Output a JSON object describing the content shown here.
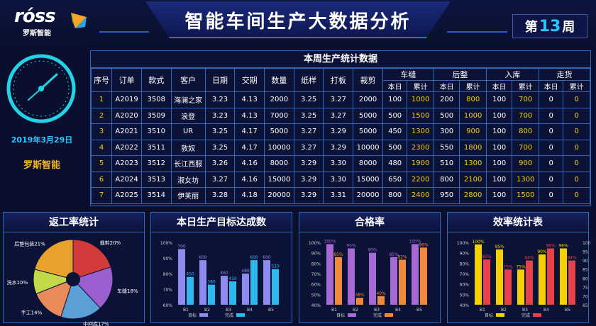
{
  "header": {
    "logo_text": "rόss",
    "logo_cn": "罗斯智能",
    "title": "智能车间生产大数据分析",
    "week_prefix": "第",
    "week_num": "13",
    "week_suffix": "周"
  },
  "left": {
    "date": "2019年3月29日",
    "company": "罗斯智能"
  },
  "table": {
    "title": "本周生产统计数据",
    "headers": [
      "序号",
      "订单",
      "款式",
      "客户",
      "日期",
      "交期",
      "数量",
      "纸样",
      "打板",
      "裁剪"
    ],
    "groups": [
      "车缝",
      "后整",
      "入库",
      "走货"
    ],
    "sub": [
      "本日",
      "累计"
    ],
    "rows": [
      [
        "1",
        "A2019",
        "3508",
        "海澜之家",
        "3.23",
        "4.13",
        "2000",
        "3.25",
        "3.27",
        "2000",
        "100",
        "1000",
        "200",
        "800",
        "100",
        "700",
        "0",
        "0"
      ],
      [
        "2",
        "A2020",
        "3509",
        "浪登",
        "3.23",
        "4.13",
        "7000",
        "3.25",
        "3.27",
        "5000",
        "500",
        "1500",
        "500",
        "1000",
        "100",
        "700",
        "0",
        "0"
      ],
      [
        "3",
        "A2021",
        "3510",
        "UR",
        "3.25",
        "4.17",
        "5000",
        "3.27",
        "3.29",
        "5000",
        "450",
        "1300",
        "300",
        "900",
        "100",
        "800",
        "0",
        "0"
      ],
      [
        "4",
        "A2022",
        "3511",
        "敦奴",
        "3.25",
        "4.17",
        "10000",
        "3.27",
        "3.29",
        "10000",
        "500",
        "2300",
        "550",
        "1800",
        "100",
        "700",
        "0",
        "0"
      ],
      [
        "5",
        "A2023",
        "3512",
        "长江西服",
        "3.26",
        "4.16",
        "8000",
        "3.29",
        "3.30",
        "8000",
        "480",
        "1900",
        "510",
        "1300",
        "100",
        "900",
        "0",
        "0"
      ],
      [
        "6",
        "A2024",
        "3513",
        "淑女坊",
        "3.27",
        "4.16",
        "15000",
        "3.29",
        "3.30",
        "15000",
        "650",
        "2200",
        "800",
        "2100",
        "100",
        "1300",
        "0",
        "0"
      ],
      [
        "7",
        "A2025",
        "3514",
        "伊芙丽",
        "3.28",
        "4.18",
        "20000",
        "3.29",
        "3.31",
        "20000",
        "800",
        "2400",
        "950",
        "2800",
        "100",
        "1500",
        "0",
        "0"
      ]
    ]
  },
  "panels": {
    "return_rate": {
      "title": "返工率统计",
      "slices": [
        {
          "label": "后整包装21%",
          "value": 21,
          "color": "#e8a12a"
        },
        {
          "label": "裁剪20%",
          "value": 20,
          "color": "#d33a3a"
        },
        {
          "label": "车缝18%",
          "value": 18,
          "color": "#9b5fd0"
        },
        {
          "label": "中间库17%",
          "value": 17,
          "color": "#5a9fd6"
        },
        {
          "label": "手工14%",
          "value": 14,
          "color": "#e88a5a"
        },
        {
          "label": "洗水10%",
          "value": 10,
          "color": "#c4d94a"
        }
      ]
    },
    "target": {
      "title": "本日生产目标达成数",
      "categories": [
        "B1",
        "B2",
        "B3",
        "B4",
        "B5"
      ],
      "target": [
        700,
        600,
        460,
        480,
        600
      ],
      "done": [
        450,
        380,
        410,
        600,
        520
      ],
      "yticks": [
        "100%",
        "90%",
        "80%",
        "70%",
        "60%"
      ],
      "legend": [
        "目标",
        "完成"
      ],
      "colors": [
        "#8c8cf0",
        "#2fb8f0"
      ]
    },
    "quality": {
      "title": "合格率",
      "categories": [
        "B1",
        "B2",
        "B3",
        "B4",
        "B5"
      ],
      "a": [
        100,
        95,
        90,
        85,
        100
      ],
      "b": [
        85,
        38,
        40,
        82,
        96
      ],
      "labels_a": [
        "100%",
        "95%",
        "90%",
        "85%",
        "100%"
      ],
      "labels_b": [
        "85%",
        "38%",
        "40%",
        "82%",
        "96%"
      ],
      "yticks": [
        "100%",
        "90%",
        "80%",
        "70%",
        "60%",
        "50%",
        "40%"
      ],
      "legend": [
        "目标",
        "完成"
      ],
      "colors": [
        "#a66ad4",
        "#f08a3a"
      ]
    },
    "efficiency": {
      "title": "效率统计表",
      "categories": [
        "B1",
        "B2",
        "B3",
        "B4",
        "B5"
      ],
      "a": [
        100,
        95,
        75,
        90,
        96
      ],
      "b": [
        85,
        75,
        84,
        96,
        84
      ],
      "labels_a": [
        "100%",
        "95%",
        "75%",
        "90%",
        "96%"
      ],
      "labels_b": [
        "85%",
        "75%",
        "84%",
        "96%",
        "84%"
      ],
      "yticks_left": [
        "100%",
        "90%",
        "80%",
        "70%",
        "60%",
        "50%",
        "40%"
      ],
      "yticks_right": [
        "100",
        "95",
        "90",
        "85",
        "80",
        "75",
        "70",
        "65"
      ],
      "legend": [
        "目标",
        "完成"
      ],
      "colors": [
        "#f5d000",
        "#e8414a"
      ]
    }
  },
  "chart_data": [
    {
      "type": "pie",
      "title": "返工率统计",
      "categories": [
        "后整包装",
        "裁剪",
        "车缝",
        "中间库",
        "手工",
        "洗水"
      ],
      "values": [
        21,
        20,
        18,
        17,
        14,
        10
      ]
    },
    {
      "type": "bar",
      "title": "本日生产目标达成数",
      "categories": [
        "B1",
        "B2",
        "B3",
        "B4",
        "B5"
      ],
      "series": [
        {
          "name": "目标",
          "values": [
            700,
            600,
            460,
            480,
            600
          ]
        },
        {
          "name": "完成",
          "values": [
            450,
            380,
            410,
            600,
            520
          ]
        }
      ]
    },
    {
      "type": "bar",
      "title": "合格率",
      "categories": [
        "B1",
        "B2",
        "B3",
        "B4",
        "B5"
      ],
      "series": [
        {
          "name": "目标",
          "values": [
            100,
            95,
            90,
            85,
            100
          ]
        },
        {
          "name": "完成",
          "values": [
            85,
            38,
            40,
            82,
            96
          ]
        }
      ],
      "ylim": [
        40,
        100
      ]
    },
    {
      "type": "bar",
      "title": "效率统计表",
      "categories": [
        "B1",
        "B2",
        "B3",
        "B4",
        "B5"
      ],
      "series": [
        {
          "name": "目标",
          "values": [
            100,
            95,
            75,
            90,
            96
          ]
        },
        {
          "name": "完成",
          "values": [
            85,
            75,
            84,
            96,
            84
          ]
        }
      ],
      "ylim": [
        40,
        100
      ]
    }
  ]
}
